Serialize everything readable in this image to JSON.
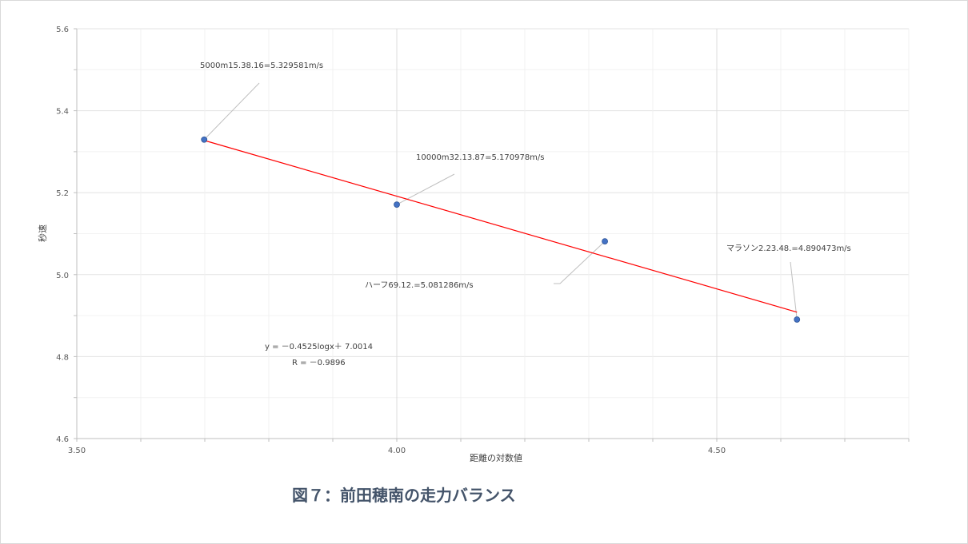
{
  "caption": "図７：前田穂南の走力バランス",
  "colors": {
    "point": "#4472c4",
    "trendline": "#ff0000",
    "grid": "#e6e6e6",
    "leader": "#bfbfbf",
    "caption": "#44546a"
  },
  "chart_data": {
    "type": "scatter",
    "title": "",
    "xlabel": "距離の対数値",
    "ylabel": "秒速",
    "xlim": [
      3.5,
      4.8
    ],
    "ylim": [
      4.6,
      5.6
    ],
    "x_ticks": [
      "3.50",
      "4.00",
      "4.50"
    ],
    "y_ticks": [
      "4.6",
      "4.8",
      "5.0",
      "5.2",
      "5.4",
      "5.6"
    ],
    "grid": true,
    "legend": "none",
    "points": [
      {
        "x": 3.699,
        "y": 5.329581,
        "label": "5000m15.38.16=5.329581m/s"
      },
      {
        "x": 4.0,
        "y": 5.170978,
        "label": "10000m32.13.87=5.170978m/s"
      },
      {
        "x": 4.3251,
        "y": 5.081286,
        "label": "ハーフ69.12.=5.081286m/s"
      },
      {
        "x": 4.6253,
        "y": 4.890473,
        "label": "マラソン2.23.48.=4.890473m/s"
      }
    ],
    "trendline": {
      "equation": "y = －0.4525logx＋ 7.0014",
      "r": "R = －0.9896",
      "slope": -0.4525,
      "intercept": 7.0014,
      "x_range": [
        3.699,
        4.6253
      ]
    }
  }
}
